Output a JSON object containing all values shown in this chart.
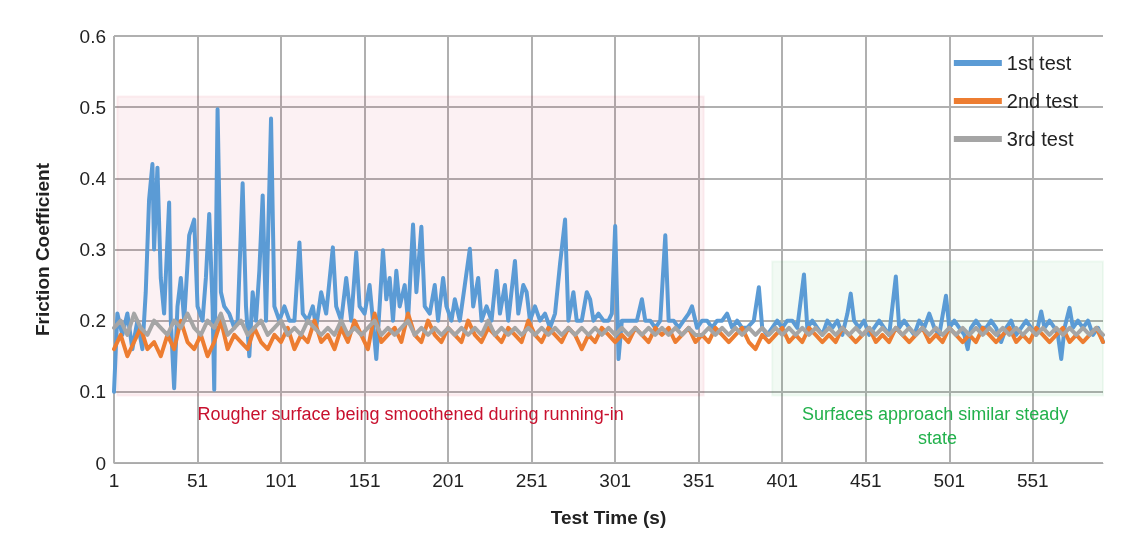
{
  "chart_data": {
    "type": "line",
    "xlabel": "Test Time (s)",
    "ylabel": "Friction Coefficient",
    "xlim": [
      1,
      593
    ],
    "xticks": [
      1,
      51,
      101,
      151,
      201,
      251,
      301,
      351,
      401,
      451,
      501,
      551
    ],
    "ylim": [
      0,
      0.6
    ],
    "yticks": [
      0,
      0.1,
      0.2,
      0.3,
      0.4,
      0.5,
      0.6
    ],
    "grid": true,
    "legend": "top right",
    "marker": "none",
    "line_style": "solid",
    "series": [
      {
        "name": "1st test",
        "color": "#5b9bd5",
        "x": [
          1,
          3,
          6,
          9,
          12,
          15,
          18,
          20,
          22,
          24,
          25,
          27,
          29,
          31,
          34,
          35,
          37,
          39,
          41,
          43,
          46,
          49,
          51,
          54,
          56,
          58,
          60,
          61,
          63,
          65,
          67,
          70,
          73,
          75,
          78,
          80,
          82,
          84,
          86,
          88,
          90,
          92,
          95,
          97,
          100,
          103,
          106,
          109,
          112,
          114,
          117,
          120,
          122,
          125,
          128,
          132,
          134,
          137,
          140,
          143,
          146,
          148,
          151,
          154,
          156,
          158,
          160,
          162,
          164,
          166,
          168,
          170,
          172,
          175,
          177,
          180,
          182,
          185,
          187,
          190,
          193,
          195,
          198,
          200,
          203,
          205,
          208,
          211,
          214,
          216,
          219,
          221,
          224,
          227,
          230,
          232,
          235,
          237,
          241,
          243,
          246,
          248,
          250,
          253,
          256,
          259,
          262,
          265,
          268,
          271,
          273,
          276,
          278,
          281,
          284,
          286,
          288,
          291,
          294,
          297,
          299,
          301,
          303,
          305,
          308,
          311,
          314,
          317,
          319,
          322,
          325,
          328,
          331,
          333,
          336,
          339,
          342,
          345,
          347,
          350,
          353,
          356,
          359,
          362,
          365,
          368,
          371,
          374,
          377,
          380,
          384,
          387,
          389,
          392,
          395,
          398,
          401,
          404,
          407,
          410,
          414,
          416,
          419,
          422,
          425,
          428,
          431,
          434,
          437,
          440,
          442,
          444,
          447,
          450,
          453,
          456,
          459,
          462,
          465,
          469,
          471,
          474,
          477,
          480,
          483,
          486,
          489,
          492,
          495,
          499,
          501,
          504,
          507,
          510,
          512,
          514,
          517,
          520,
          523,
          526,
          529,
          532,
          535,
          538,
          541,
          544,
          547,
          550,
          553,
          556,
          558,
          561,
          564,
          566,
          568,
          570,
          573,
          575,
          578,
          581,
          584,
          587,
          590,
          593
        ],
        "values": [
          0.1,
          0.21,
          0.18,
          0.21,
          0.16,
          0.2,
          0.16,
          0.24,
          0.37,
          0.42,
          0.3,
          0.415,
          0.26,
          0.21,
          0.366,
          0.2,
          0.105,
          0.22,
          0.26,
          0.2,
          0.32,
          0.342,
          0.22,
          0.2,
          0.26,
          0.35,
          0.22,
          0.103,
          0.497,
          0.24,
          0.22,
          0.21,
          0.19,
          0.2,
          0.393,
          0.22,
          0.15,
          0.24,
          0.2,
          0.27,
          0.376,
          0.2,
          0.484,
          0.22,
          0.2,
          0.22,
          0.2,
          0.2,
          0.31,
          0.21,
          0.2,
          0.22,
          0.19,
          0.24,
          0.21,
          0.303,
          0.22,
          0.2,
          0.26,
          0.2,
          0.296,
          0.22,
          0.21,
          0.25,
          0.2,
          0.146,
          0.22,
          0.299,
          0.23,
          0.26,
          0.2,
          0.27,
          0.22,
          0.25,
          0.2,
          0.335,
          0.24,
          0.332,
          0.22,
          0.21,
          0.25,
          0.2,
          0.26,
          0.22,
          0.2,
          0.23,
          0.2,
          0.25,
          0.301,
          0.22,
          0.26,
          0.2,
          0.22,
          0.2,
          0.27,
          0.21,
          0.25,
          0.2,
          0.284,
          0.21,
          0.25,
          0.24,
          0.2,
          0.22,
          0.2,
          0.21,
          0.19,
          0.21,
          0.28,
          0.342,
          0.2,
          0.24,
          0.2,
          0.2,
          0.24,
          0.23,
          0.2,
          0.21,
          0.2,
          0.2,
          0.21,
          0.333,
          0.146,
          0.2,
          0.2,
          0.2,
          0.2,
          0.23,
          0.2,
          0.2,
          0.19,
          0.2,
          0.32,
          0.2,
          0.2,
          0.19,
          0.2,
          0.21,
          0.22,
          0.19,
          0.2,
          0.2,
          0.19,
          0.2,
          0.2,
          0.21,
          0.19,
          0.2,
          0.19,
          0.19,
          0.2,
          0.247,
          0.19,
          0.18,
          0.19,
          0.2,
          0.19,
          0.2,
          0.2,
          0.19,
          0.265,
          0.19,
          0.2,
          0.19,
          0.18,
          0.2,
          0.19,
          0.2,
          0.18,
          0.21,
          0.238,
          0.2,
          0.19,
          0.2,
          0.18,
          0.19,
          0.2,
          0.19,
          0.18,
          0.262,
          0.19,
          0.2,
          0.19,
          0.18,
          0.2,
          0.19,
          0.21,
          0.19,
          0.18,
          0.235,
          0.19,
          0.2,
          0.19,
          0.18,
          0.16,
          0.19,
          0.2,
          0.19,
          0.19,
          0.2,
          0.19,
          0.17,
          0.19,
          0.2,
          0.18,
          0.19,
          0.2,
          0.19,
          0.18,
          0.213,
          0.19,
          0.2,
          0.19,
          0.18,
          0.146,
          0.19,
          0.218,
          0.19,
          0.2,
          0.19,
          0.2,
          0.18,
          0.19,
          0.17
        ]
      },
      {
        "name": "2nd test",
        "color": "#ed7d31",
        "x": [
          1,
          5,
          9,
          13,
          17,
          21,
          25,
          29,
          33,
          37,
          41,
          45,
          49,
          53,
          57,
          61,
          65,
          69,
          73,
          77,
          81,
          85,
          89,
          93,
          97,
          101,
          105,
          109,
          113,
          117,
          121,
          125,
          129,
          133,
          137,
          141,
          145,
          149,
          153,
          157,
          161,
          165,
          169,
          173,
          177,
          181,
          185,
          189,
          193,
          197,
          201,
          205,
          209,
          213,
          217,
          221,
          225,
          229,
          233,
          237,
          241,
          245,
          249,
          253,
          257,
          261,
          265,
          269,
          273,
          277,
          281,
          285,
          289,
          293,
          297,
          301,
          305,
          309,
          313,
          317,
          321,
          325,
          329,
          333,
          337,
          341,
          345,
          349,
          353,
          357,
          361,
          365,
          369,
          373,
          377,
          381,
          385,
          389,
          393,
          397,
          401,
          405,
          409,
          413,
          417,
          421,
          425,
          429,
          433,
          437,
          441,
          445,
          449,
          453,
          457,
          461,
          465,
          469,
          473,
          477,
          481,
          485,
          489,
          493,
          497,
          501,
          505,
          509,
          513,
          517,
          521,
          525,
          529,
          533,
          537,
          541,
          545,
          549,
          553,
          557,
          561,
          565,
          569,
          573,
          577,
          581,
          585,
          589,
          593
        ],
        "values": [
          0.16,
          0.18,
          0.15,
          0.17,
          0.19,
          0.16,
          0.17,
          0.15,
          0.18,
          0.16,
          0.2,
          0.17,
          0.16,
          0.18,
          0.15,
          0.17,
          0.2,
          0.16,
          0.18,
          0.17,
          0.16,
          0.19,
          0.17,
          0.16,
          0.18,
          0.17,
          0.19,
          0.16,
          0.18,
          0.17,
          0.2,
          0.17,
          0.18,
          0.16,
          0.19,
          0.17,
          0.2,
          0.18,
          0.16,
          0.21,
          0.17,
          0.18,
          0.19,
          0.17,
          0.21,
          0.18,
          0.17,
          0.2,
          0.18,
          0.17,
          0.19,
          0.18,
          0.17,
          0.2,
          0.18,
          0.17,
          0.19,
          0.18,
          0.17,
          0.19,
          0.18,
          0.17,
          0.2,
          0.18,
          0.17,
          0.19,
          0.18,
          0.17,
          0.19,
          0.18,
          0.16,
          0.18,
          0.17,
          0.19,
          0.18,
          0.17,
          0.18,
          0.17,
          0.19,
          0.18,
          0.17,
          0.19,
          0.18,
          0.19,
          0.17,
          0.18,
          0.19,
          0.17,
          0.18,
          0.17,
          0.19,
          0.18,
          0.17,
          0.18,
          0.19,
          0.17,
          0.16,
          0.18,
          0.17,
          0.18,
          0.19,
          0.17,
          0.18,
          0.17,
          0.19,
          0.18,
          0.17,
          0.18,
          0.17,
          0.19,
          0.18,
          0.17,
          0.18,
          0.19,
          0.17,
          0.18,
          0.17,
          0.19,
          0.18,
          0.17,
          0.18,
          0.19,
          0.17,
          0.18,
          0.17,
          0.19,
          0.18,
          0.17,
          0.18,
          0.17,
          0.19,
          0.18,
          0.17,
          0.18,
          0.19,
          0.17,
          0.18,
          0.17,
          0.19,
          0.18,
          0.17,
          0.18,
          0.19,
          0.17,
          0.18,
          0.17,
          0.18,
          0.19,
          0.17
        ]
      },
      {
        "name": "3rd test",
        "color": "#a5a5a5",
        "x": [
          1,
          5,
          9,
          13,
          17,
          21,
          25,
          29,
          33,
          37,
          41,
          45,
          49,
          53,
          57,
          61,
          65,
          69,
          73,
          77,
          81,
          85,
          89,
          93,
          97,
          101,
          105,
          109,
          113,
          117,
          121,
          125,
          129,
          133,
          137,
          141,
          145,
          149,
          153,
          157,
          161,
          165,
          169,
          173,
          177,
          181,
          185,
          189,
          193,
          197,
          201,
          205,
          209,
          213,
          217,
          221,
          225,
          229,
          233,
          237,
          241,
          245,
          249,
          253,
          257,
          261,
          265,
          269,
          273,
          277,
          281,
          285,
          289,
          293,
          297,
          301,
          305,
          309,
          313,
          317,
          321,
          325,
          329,
          333,
          337,
          341,
          345,
          349,
          353,
          357,
          361,
          365,
          369,
          373,
          377,
          381,
          385,
          389,
          393,
          397,
          401,
          405,
          409,
          413,
          417,
          421,
          425,
          429,
          433,
          437,
          441,
          445,
          449,
          453,
          457,
          461,
          465,
          469,
          473,
          477,
          481,
          485,
          489,
          493,
          497,
          501,
          505,
          509,
          513,
          517,
          521,
          525,
          529,
          533,
          537,
          541,
          545,
          549,
          553,
          557,
          561,
          565,
          569,
          573,
          577,
          581,
          585,
          589,
          593
        ],
        "values": [
          0.19,
          0.2,
          0.18,
          0.21,
          0.19,
          0.18,
          0.2,
          0.19,
          0.18,
          0.2,
          0.19,
          0.21,
          0.19,
          0.18,
          0.2,
          0.19,
          0.21,
          0.18,
          0.19,
          0.2,
          0.18,
          0.19,
          0.2,
          0.18,
          0.19,
          0.2,
          0.18,
          0.19,
          0.18,
          0.2,
          0.19,
          0.18,
          0.19,
          0.18,
          0.2,
          0.18,
          0.19,
          0.18,
          0.19,
          0.2,
          0.18,
          0.19,
          0.18,
          0.19,
          0.2,
          0.18,
          0.19,
          0.18,
          0.19,
          0.18,
          0.19,
          0.18,
          0.19,
          0.18,
          0.19,
          0.18,
          0.2,
          0.18,
          0.19,
          0.18,
          0.19,
          0.18,
          0.19,
          0.18,
          0.19,
          0.18,
          0.19,
          0.18,
          0.19,
          0.18,
          0.19,
          0.18,
          0.19,
          0.18,
          0.19,
          0.18,
          0.19,
          0.18,
          0.19,
          0.18,
          0.19,
          0.18,
          0.19,
          0.18,
          0.19,
          0.18,
          0.19,
          0.18,
          0.18,
          0.19,
          0.18,
          0.19,
          0.18,
          0.19,
          0.18,
          0.19,
          0.18,
          0.19,
          0.18,
          0.19,
          0.18,
          0.19,
          0.18,
          0.19,
          0.18,
          0.19,
          0.18,
          0.19,
          0.18,
          0.19,
          0.18,
          0.19,
          0.18,
          0.19,
          0.18,
          0.19,
          0.18,
          0.19,
          0.18,
          0.19,
          0.18,
          0.19,
          0.18,
          0.19,
          0.18,
          0.19,
          0.18,
          0.19,
          0.18,
          0.19,
          0.18,
          0.19,
          0.18,
          0.19,
          0.18,
          0.19,
          0.18,
          0.19,
          0.18,
          0.19,
          0.18,
          0.19,
          0.18,
          0.19,
          0.18,
          0.19,
          0.18,
          0.19,
          0.18
        ]
      }
    ],
    "bands": [
      {
        "axis": "x",
        "from": 3,
        "to": 354,
        "label": "Rougher surface being smoothened during running-in",
        "color": "#c8102e"
      },
      {
        "axis": "x",
        "from": 395,
        "to": 593,
        "label": "Surfaces approach similar steady state",
        "color": "#22b14c"
      }
    ]
  }
}
